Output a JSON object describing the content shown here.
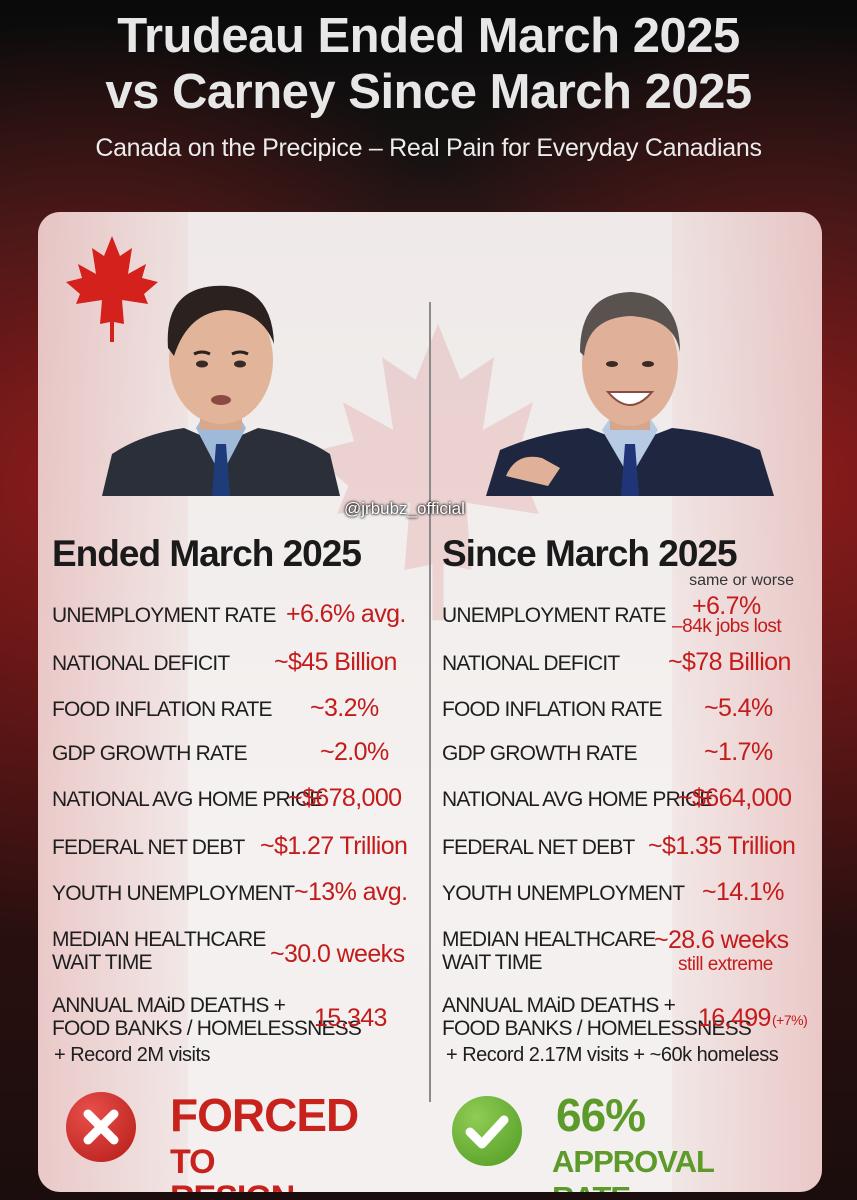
{
  "header": {
    "title_line1": "Trudeau Ended March 2025",
    "title_line2": "vs Carney Since March 2025",
    "subtitle": "Canada on the Precipice – Real Pain for Everyday Canadians"
  },
  "watermark": "@jrbubz_official",
  "left": {
    "heading": "Ended March 2025",
    "rows": [
      {
        "label": "UNEMPLOYMENT RATE",
        "value": "+6.6% avg."
      },
      {
        "label": "NATIONAL DEFICIT",
        "value": "~$45 Billion"
      },
      {
        "label": "FOOD INFLATION RATE",
        "value": "~3.2%"
      },
      {
        "label": "GDP GROWTH RATE",
        "value": "~2.0%"
      },
      {
        "label": "NATIONAL AVG HOME PRICE",
        "value": "~$678,000"
      },
      {
        "label": "FEDERAL NET DEBT",
        "value": "~$1.27 Trillion"
      },
      {
        "label": "YOUTH UNEMPLOYMENT",
        "value": "~13% avg."
      },
      {
        "label_line1": "MEDIAN HEALTHCARE",
        "label_line2": "WAIT TIME",
        "value": "~30.0 weeks"
      },
      {
        "label_line1": "ANNUAL MAiD DEATHS +",
        "label_line2": "FOOD BANKS / HOMELESSNESS",
        "value": "15,343",
        "note": "+ Record 2M visits"
      }
    ],
    "badge": {
      "line1": "FORCED",
      "line2": "TO RESIGN",
      "color": "#c8221c"
    }
  },
  "right": {
    "heading": "Since March 2025",
    "heading_note": "same or worse",
    "rows": [
      {
        "label": "UNEMPLOYMENT RATE",
        "value": "+6.7%",
        "sub": "–84k jobs lost"
      },
      {
        "label": "NATIONAL DEFICIT",
        "value": "~$78 Billion"
      },
      {
        "label": "FOOD INFLATION RATE",
        "value": "~5.4%"
      },
      {
        "label": "GDP GROWTH RATE",
        "value": "~1.7%"
      },
      {
        "label": "NATIONAL AVG HOME PRICE",
        "value": "~$664,000"
      },
      {
        "label": "FEDERAL NET DEBT",
        "value": "~$1.35 Trillion"
      },
      {
        "label": "YOUTH UNEMPLOYMENT",
        "value": "~14.1%"
      },
      {
        "label_line1": "MEDIAN HEALTHCARE",
        "label_line2": "WAIT TIME",
        "value": "~28.6 weeks",
        "sub": "still extreme"
      },
      {
        "label_line1": "ANNUAL MAiD DEATHS +",
        "label_line2": "FOOD BANKS / HOMELESSNESS",
        "value": "16,499",
        "sub": "(+7%)",
        "note": "+ Record 2.17M visits + ~60k homeless"
      }
    ],
    "badge": {
      "line1": "66%",
      "line2": "APPROVAL RATE",
      "color": "#5c9a2a"
    }
  },
  "icons": {
    "left_badge": "x-circle-icon",
    "right_badge": "check-circle-icon",
    "flag": "maple-leaf-icon"
  }
}
